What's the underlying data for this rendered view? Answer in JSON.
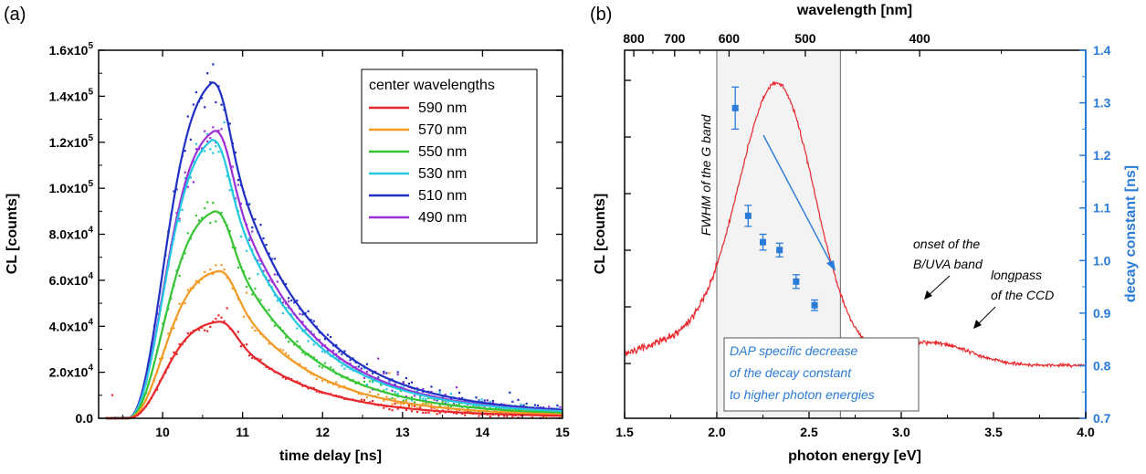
{
  "chart_data": [
    {
      "type": "scatter",
      "panel_label": "(a)",
      "xlabel": "time delay [ns]",
      "ylabel": "CL [counts]",
      "xlim": [
        9.2,
        15
      ],
      "ylim": [
        0,
        160000
      ],
      "x_ticks": [
        "10",
        "11",
        "12",
        "13",
        "14",
        "15"
      ],
      "y_ticks": [
        {
          "mant": "0.0",
          "exp": ""
        },
        {
          "mant": "2.0x10",
          "exp": "4"
        },
        {
          "mant": "4.0x10",
          "exp": "4"
        },
        {
          "mant": "6.0x10",
          "exp": "4"
        },
        {
          "mant": "8.0x10",
          "exp": "4"
        },
        {
          "mant": "1.0x10",
          "exp": "5"
        },
        {
          "mant": "1.2x10",
          "exp": "5"
        },
        {
          "mant": "1.4x10",
          "exp": "5"
        },
        {
          "mant": "1.6x10",
          "exp": "5"
        }
      ],
      "legend_title": "center wavelengths",
      "legend_position": "top-right",
      "series": [
        {
          "name": "590 nm",
          "color": "#e8262b",
          "peak_x": 10.7,
          "peak_y": 42000,
          "tail_y": 2500
        },
        {
          "name": "570 nm",
          "color": "#f39a24",
          "peak_x": 10.7,
          "peak_y": 64000,
          "tail_y": 3000
        },
        {
          "name": "550 nm",
          "color": "#34c434",
          "peak_x": 10.65,
          "peak_y": 90000,
          "tail_y": 4500
        },
        {
          "name": "530 nm",
          "color": "#22c8e0",
          "peak_x": 10.62,
          "peak_y": 121000,
          "tail_y": 5500
        },
        {
          "name": "510 nm",
          "color": "#1f2fc4",
          "peak_x": 10.62,
          "peak_y": 146000,
          "tail_y": 6500
        },
        {
          "name": "490 nm",
          "color": "#9b2fd8",
          "peak_x": 10.65,
          "peak_y": 125000,
          "tail_y": 6000
        }
      ]
    },
    {
      "type": "line",
      "panel_label": "(b)",
      "xlabel": "photon energy [eV]",
      "ylabel": "CL [counts]",
      "x2label": "wavelength [nm]",
      "y2label": "decay constant [ns]",
      "xlim": [
        1.5,
        4.0
      ],
      "y2lim": [
        0.7,
        1.4
      ],
      "x_ticks": [
        "1.5",
        "2.0",
        "2.5",
        "3.0",
        "3.5",
        "4.0"
      ],
      "x2_ticks": [
        "800",
        "700",
        "600",
        "500",
        "400"
      ],
      "y2_ticks": [
        "0.7",
        "0.8",
        "0.9",
        "1.0",
        "1.1",
        "1.2",
        "1.3",
        "1.4"
      ],
      "fwhm_band_ev": [
        2.0,
        2.67
      ],
      "spectrum_color": "#e8262b",
      "decay_color": "#2a7bd8",
      "decay_points": [
        {
          "x": 2.1,
          "y": 1.29,
          "err": 0.04
        },
        {
          "x": 2.17,
          "y": 1.085,
          "err": 0.02
        },
        {
          "x": 2.25,
          "y": 1.035,
          "err": 0.015
        },
        {
          "x": 2.34,
          "y": 1.02,
          "err": 0.013
        },
        {
          "x": 2.43,
          "y": 0.96,
          "err": 0.013
        },
        {
          "x": 2.53,
          "y": 0.915,
          "err": 0.01
        }
      ],
      "annotations": {
        "fwhm": "FWHM of the G band",
        "onset_line1": "onset of the",
        "onset_line2": "B/UVA band",
        "longpass_line1": "longpass",
        "longpass_line2": "of the CCD",
        "dap_line1": "DAP specific decrease",
        "dap_line2": "of the decay constant",
        "dap_line3": "to higher photon energies"
      }
    }
  ]
}
